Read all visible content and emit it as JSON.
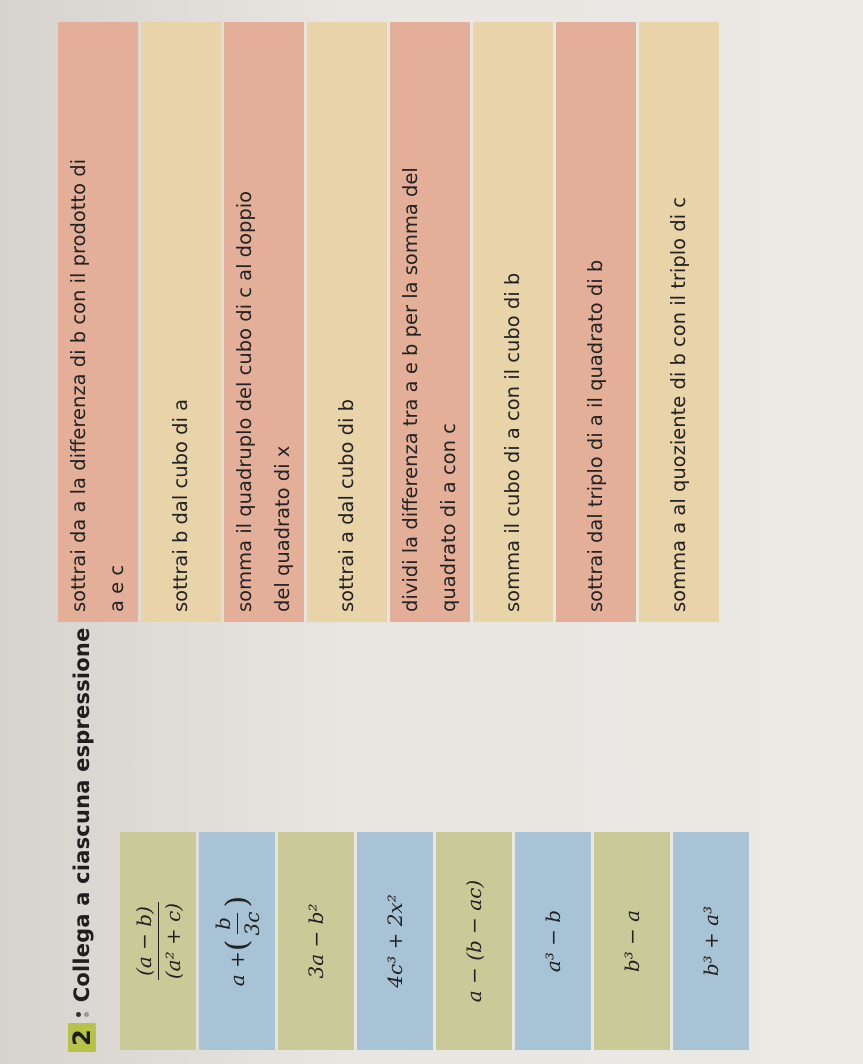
{
  "exercise": {
    "number": "2",
    "instruction": "Collega a ciascuna espressione letterale la frase corrispondente."
  },
  "expressions": [
    {
      "num": "(a − b)",
      "den": "(a² + c)"
    },
    {
      "prefix": "a + ",
      "num": "b",
      "den": "3c"
    },
    {
      "text": "3a − b²"
    },
    {
      "text": "4c³ + 2x²"
    },
    {
      "text": "a − (b − ac)"
    },
    {
      "text": "a³ − b"
    },
    {
      "text": "b³ − a"
    },
    {
      "text": "b³ + a³"
    }
  ],
  "phrases": [
    {
      "line1": "sottrai da a la differenza di b con il prodotto di",
      "line2": "a e c"
    },
    {
      "line1": "sottrai b dal cubo di a"
    },
    {
      "line1": "somma il quadruplo del cubo di c al doppio",
      "line2": "del quadrato di x"
    },
    {
      "line1": "sottrai a dal cubo di b"
    },
    {
      "line1": "dividi la differenza tra a e b per la somma del",
      "line2": "quadrato di a con c"
    },
    {
      "line1": "somma il cubo di a con il cubo di b"
    },
    {
      "line1": "sottrai dal triplo di a il quadrato di b"
    },
    {
      "line1": "somma a al quoziente di b con il triplo di c"
    }
  ]
}
